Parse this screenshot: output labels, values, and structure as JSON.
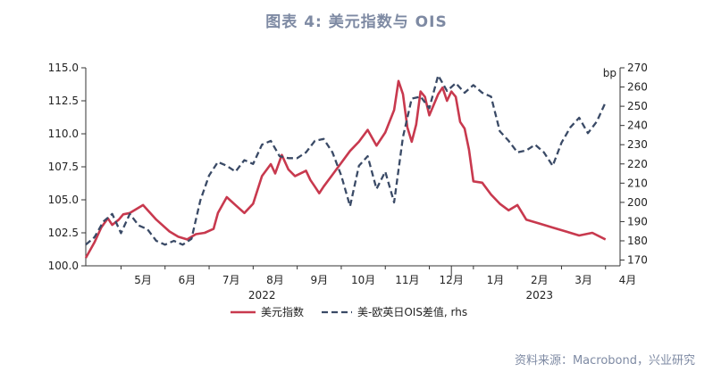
{
  "figure": {
    "title": "图表 4:  美元指数与 OIS",
    "source": "资料来源：Macrobond，兴业研究"
  },
  "chart_data": {
    "type": "line",
    "left_axis": {
      "ylim": [
        100.0,
        115.0
      ],
      "ticks": [
        "100.0",
        "102.5",
        "105.0",
        "107.5",
        "110.0",
        "112.5",
        "115.0"
      ]
    },
    "right_axis": {
      "unit_label": "bp",
      "ylim": [
        167,
        270
      ],
      "ticks": [
        "170",
        "180",
        "190",
        "200",
        "210",
        "220",
        "230",
        "240",
        "250",
        "260",
        "270"
      ]
    },
    "x_axis": {
      "months": [
        "5月",
        "6月",
        "7月",
        "8月",
        "9月",
        "10月",
        "11月",
        "12月",
        "1月",
        "2月",
        "3月",
        "4月"
      ],
      "years": [
        "2022",
        "2023"
      ]
    },
    "grid": false,
    "legend_position": "bottom-center",
    "series": [
      {
        "name": "美元指数",
        "axis": "left",
        "color": "#c8394e",
        "x": [
          0,
          0.2,
          0.35,
          0.5,
          0.6,
          0.75,
          0.85,
          1.0,
          1.3,
          1.6,
          1.9,
          2.1,
          2.3,
          2.5,
          2.7,
          2.9,
          3.0,
          3.2,
          3.4,
          3.6,
          3.8,
          4.0,
          4.2,
          4.3,
          4.45,
          4.6,
          4.75,
          5.0,
          5.1,
          5.2,
          5.3,
          5.4,
          5.6,
          5.8,
          6.0,
          6.2,
          6.4,
          6.6,
          6.8,
          7.0,
          7.1,
          7.2,
          7.3,
          7.4,
          7.5,
          7.6,
          7.7,
          7.8,
          8.0,
          8.1,
          8.2,
          8.3,
          8.4,
          8.5,
          8.6,
          8.7,
          8.8,
          9.0,
          9.2,
          9.4,
          9.6,
          9.8,
          10.0,
          10.3,
          10.6,
          10.9,
          11.2,
          11.5,
          11.8
        ],
        "values": [
          100.6,
          101.8,
          102.9,
          103.6,
          103.1,
          103.5,
          103.9,
          104.0,
          104.6,
          103.5,
          102.6,
          102.2,
          102.0,
          102.4,
          102.5,
          102.8,
          104.0,
          105.2,
          104.6,
          104.0,
          104.7,
          106.8,
          107.7,
          107.0,
          108.4,
          107.3,
          106.8,
          107.2,
          106.5,
          106.0,
          105.5,
          106.0,
          106.9,
          107.8,
          108.7,
          109.4,
          110.3,
          109.1,
          110.1,
          111.8,
          114.0,
          113.0,
          110.5,
          109.4,
          110.7,
          113.2,
          112.8,
          111.4,
          113.0,
          113.5,
          112.5,
          113.2,
          112.8,
          110.9,
          110.4,
          108.8,
          106.4,
          106.3,
          105.4,
          104.7,
          104.2,
          104.6,
          103.5,
          103.2,
          102.9,
          102.6,
          102.3,
          102.5,
          102.0
        ]
      },
      {
        "name": "美-欧英日OIS差值, rhs",
        "axis": "right",
        "color": "#3a4a66",
        "x": [
          0,
          0.2,
          0.4,
          0.6,
          0.8,
          1.0,
          1.2,
          1.4,
          1.6,
          1.8,
          2.0,
          2.2,
          2.4,
          2.6,
          2.8,
          3.0,
          3.2,
          3.4,
          3.6,
          3.8,
          4.0,
          4.2,
          4.4,
          4.6,
          4.8,
          5.0,
          5.2,
          5.4,
          5.6,
          5.8,
          6.0,
          6.2,
          6.4,
          6.6,
          6.8,
          7.0,
          7.2,
          7.4,
          7.6,
          7.8,
          8.0,
          8.2,
          8.4,
          8.6,
          8.8,
          9.0,
          9.2,
          9.4,
          9.6,
          9.8,
          10.0,
          10.2,
          10.4,
          10.6,
          10.8,
          11.0,
          11.2,
          11.4,
          11.6,
          11.8
        ],
        "values": [
          178,
          182,
          190,
          194,
          184,
          194,
          188,
          186,
          180,
          178,
          180,
          178,
          181,
          201,
          214,
          221,
          219,
          216,
          222,
          220,
          230,
          232,
          224,
          223,
          223,
          226,
          232,
          233,
          226,
          214,
          198,
          219,
          224,
          207,
          216,
          200,
          234,
          254,
          255,
          249,
          266,
          258,
          262,
          257,
          261,
          257,
          255,
          237,
          232,
          226,
          227,
          230,
          226,
          219,
          231,
          239,
          244,
          236,
          242,
          252
        ]
      }
    ]
  }
}
